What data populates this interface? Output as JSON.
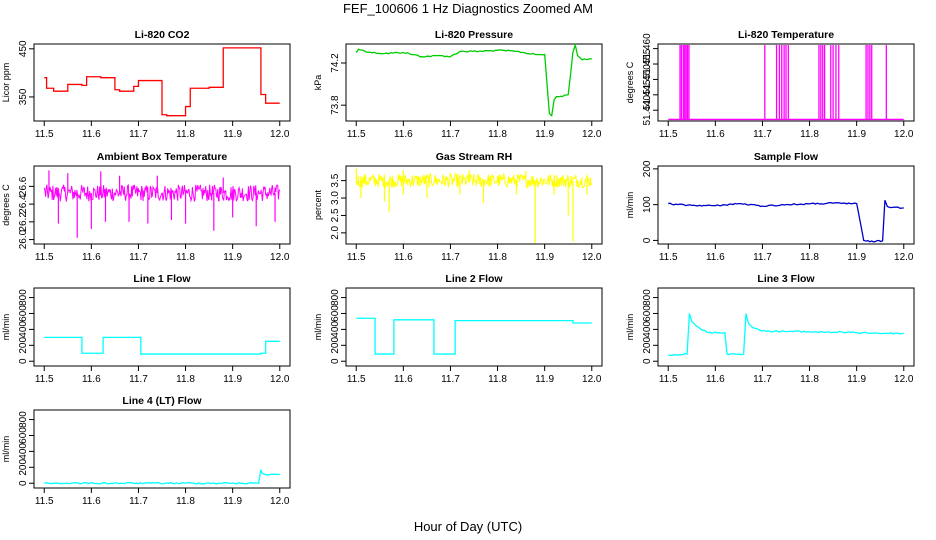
{
  "figure": {
    "title": "FEF_100606  1 Hz Diagnostics Zoomed AM",
    "xlabel": "Hour of Day (UTC)"
  },
  "chart_data": [
    {
      "type": "line",
      "title": "Li-820 CO2",
      "ylabel": "Licor ppm",
      "color": "#ff0000",
      "xlim": [
        11.5,
        12.0
      ],
      "ylim": [
        300,
        460
      ],
      "xticks": [
        11.5,
        11.6,
        11.7,
        11.8,
        11.9,
        12.0
      ],
      "yticks": [
        350,
        450
      ],
      "step": true,
      "x": [
        11.5,
        11.505,
        11.52,
        11.55,
        11.58,
        11.59,
        11.62,
        11.65,
        11.66,
        11.69,
        11.7,
        11.75,
        11.76,
        11.8,
        11.81,
        11.85,
        11.88,
        11.95,
        11.96,
        11.97,
        12.0
      ],
      "y": [
        390,
        368,
        362,
        376,
        374,
        392,
        390,
        365,
        362,
        372,
        384,
        313,
        311,
        330,
        368,
        370,
        452,
        452,
        355,
        337,
        337
      ]
    },
    {
      "type": "line",
      "title": "Li-820 Pressure",
      "ylabel": "kPa",
      "color": "#00cc00",
      "xlim": [
        11.5,
        12.0
      ],
      "ylim": [
        73.65,
        74.38
      ],
      "xticks": [
        11.5,
        11.6,
        11.7,
        11.8,
        11.9,
        12.0
      ],
      "yticks": [
        73.8,
        74.2
      ],
      "ytick_labels": [
        "73.8",
        "74.2"
      ],
      "step": false,
      "x": [
        11.5,
        11.505,
        11.53,
        11.56,
        11.6,
        11.64,
        11.68,
        11.7,
        11.72,
        11.76,
        11.8,
        11.84,
        11.88,
        11.9,
        11.91,
        11.915,
        11.92,
        11.925,
        11.93,
        11.95,
        11.96,
        11.965,
        11.97,
        11.98,
        12.0
      ],
      "y": [
        74.3,
        74.33,
        74.3,
        74.29,
        74.3,
        74.26,
        74.27,
        74.26,
        74.31,
        74.31,
        74.32,
        74.31,
        74.28,
        74.28,
        73.72,
        73.7,
        73.85,
        73.88,
        73.88,
        73.9,
        74.3,
        74.37,
        74.27,
        74.23,
        74.24
      ]
    },
    {
      "type": "line",
      "title": "Li-820 Temperature",
      "ylabel": "degrees C",
      "color": "#ff00ff",
      "xlim": [
        11.5,
        12.0
      ],
      "ylim": [
        51.4365,
        51.4615
      ],
      "xticks": [
        11.5,
        11.6,
        11.7,
        11.8,
        11.9,
        12.0
      ],
      "yticks": [
        51.44,
        51.445,
        51.45,
        51.455,
        51.46
      ],
      "ytick_labels": [
        "51.440",
        "51.445",
        "51.450",
        "51.455",
        "51.460"
      ],
      "baseline": 51.437,
      "spike_top": 51.4615,
      "spikes": [
        11.525,
        11.528,
        11.532,
        11.535,
        11.538,
        11.541,
        11.544,
        11.705,
        11.73,
        11.736,
        11.741,
        11.746,
        11.75,
        11.755,
        11.82,
        11.824,
        11.828,
        11.832,
        11.845,
        11.85,
        11.856,
        11.862,
        11.92,
        11.924,
        11.928,
        11.932,
        11.963
      ]
    },
    {
      "type": "line",
      "title": "Ambient Box Temperature",
      "ylabel": "degrees C",
      "color": "#ff00ff",
      "xlim": [
        11.5,
        12.0
      ],
      "ylim": [
        25.95,
        26.83
      ],
      "xticks": [
        11.5,
        11.6,
        11.7,
        11.8,
        11.9,
        12.0
      ],
      "yticks": [
        26.0,
        26.2,
        26.4,
        26.6
      ],
      "ytick_labels": [
        "26.0",
        "26.2",
        "26.4",
        "26.6"
      ],
      "band": {
        "low": 26.43,
        "high": 26.62
      },
      "dips": [
        [
          11.53,
          26.18
        ],
        [
          11.57,
          26.02
        ],
        [
          11.6,
          26.12
        ],
        [
          11.63,
          26.2
        ],
        [
          11.68,
          26.2
        ],
        [
          11.72,
          26.18
        ],
        [
          11.77,
          26.22
        ],
        [
          11.8,
          26.18
        ],
        [
          11.86,
          26.1
        ],
        [
          11.9,
          26.25
        ],
        [
          11.95,
          26.15
        ],
        [
          11.99,
          26.2
        ]
      ],
      "peaks": [
        [
          11.51,
          26.78
        ],
        [
          11.55,
          26.75
        ],
        [
          11.62,
          26.77
        ],
        [
          11.66,
          26.72
        ],
        [
          11.74,
          26.72
        ],
        [
          11.88,
          26.7
        ]
      ]
    },
    {
      "type": "line",
      "title": "Gas Stream RH",
      "ylabel": "percent",
      "color": "#ffff00",
      "xlim": [
        11.5,
        12.0
      ],
      "ylim": [
        1.68,
        3.92
      ],
      "xticks": [
        11.5,
        11.6,
        11.7,
        11.8,
        11.9,
        12.0
      ],
      "yticks": [
        2.0,
        2.5,
        3.0,
        3.5
      ],
      "ytick_labels": [
        "2.0",
        "2.5",
        "3.0",
        "3.5"
      ],
      "band": {
        "low": 3.3,
        "high": 3.7
      },
      "dips": [
        [
          11.51,
          3.0
        ],
        [
          11.56,
          2.9
        ],
        [
          11.57,
          2.6
        ],
        [
          11.6,
          3.1
        ],
        [
          11.65,
          3.0
        ],
        [
          11.72,
          3.1
        ],
        [
          11.77,
          2.85
        ],
        [
          11.84,
          3.1
        ],
        [
          11.88,
          1.7
        ],
        [
          11.92,
          3.1
        ],
        [
          11.95,
          2.5
        ],
        [
          11.96,
          1.75
        ],
        [
          11.99,
          3.1
        ]
      ],
      "peaks": [
        [
          11.5,
          3.85
        ],
        [
          11.6,
          3.8
        ],
        [
          11.74,
          3.8
        ],
        [
          11.86,
          3.78
        ]
      ]
    },
    {
      "type": "line",
      "title": "Sample Flow",
      "ylabel": "ml/min",
      "color": "#0000cc",
      "xlim": [
        11.5,
        12.0
      ],
      "ylim": [
        -10,
        208
      ],
      "xticks": [
        11.5,
        11.6,
        11.7,
        11.8,
        11.9,
        12.0
      ],
      "yticks": [
        0,
        100,
        200
      ],
      "step": false,
      "x": [
        11.5,
        11.52,
        11.55,
        11.6,
        11.65,
        11.7,
        11.75,
        11.8,
        11.85,
        11.9,
        11.915,
        11.92,
        11.94,
        11.955,
        11.96,
        11.965,
        11.97,
        11.98,
        12.0
      ],
      "y": [
        103,
        100,
        98,
        97,
        103,
        96,
        100,
        102,
        104,
        103,
        0,
        -2,
        -3,
        -1,
        112,
        95,
        92,
        93,
        91
      ]
    },
    {
      "type": "line",
      "title": "Line 1 Flow",
      "ylabel": "ml/min",
      "color": "#00ffff",
      "xlim": [
        11.5,
        12.0
      ],
      "ylim": [
        -60,
        920
      ],
      "xticks": [
        11.5,
        11.6,
        11.7,
        11.8,
        11.9,
        12.0
      ],
      "yticks": [
        0,
        200,
        400,
        600,
        800
      ],
      "step": true,
      "x": [
        11.5,
        11.58,
        11.625,
        11.705,
        11.96,
        11.97,
        12.0
      ],
      "y": [
        300,
        100,
        300,
        90,
        100,
        250,
        250
      ]
    },
    {
      "type": "line",
      "title": "Line 2 Flow",
      "ylabel": "ml/min",
      "color": "#00ffff",
      "xlim": [
        11.5,
        12.0
      ],
      "ylim": [
        -60,
        920
      ],
      "xticks": [
        11.5,
        11.6,
        11.7,
        11.8,
        11.9,
        12.0
      ],
      "yticks": [
        0,
        200,
        400,
        600,
        800
      ],
      "step": true,
      "x": [
        11.5,
        11.54,
        11.58,
        11.665,
        11.71,
        11.96,
        12.0
      ],
      "y": [
        540,
        90,
        520,
        90,
        510,
        480,
        480
      ]
    },
    {
      "type": "line",
      "title": "Line 3 Flow",
      "ylabel": "ml/min",
      "color": "#00ffff",
      "xlim": [
        11.5,
        12.0
      ],
      "ylim": [
        -60,
        920
      ],
      "xticks": [
        11.5,
        11.6,
        11.7,
        11.8,
        11.9,
        12.0
      ],
      "yticks": [
        0,
        200,
        400,
        600,
        800
      ],
      "step": false,
      "x": [
        11.5,
        11.54,
        11.545,
        11.55,
        11.56,
        11.57,
        11.585,
        11.62,
        11.625,
        11.66,
        11.665,
        11.67,
        11.68,
        11.7,
        11.8,
        11.9,
        11.96,
        12.0
      ],
      "y": [
        80,
        90,
        600,
        500,
        440,
        400,
        360,
        360,
        90,
        90,
        600,
        480,
        420,
        380,
        370,
        360,
        350,
        350
      ]
    },
    {
      "type": "line",
      "title": "Line 4 (LT) Flow",
      "ylabel": "ml/min",
      "color": "#00ffff",
      "xlim": [
        11.5,
        12.0
      ],
      "ylim": [
        -60,
        920
      ],
      "xticks": [
        11.5,
        11.6,
        11.7,
        11.8,
        11.9,
        12.0
      ],
      "yticks": [
        0,
        200,
        400,
        600,
        800
      ],
      "step": false,
      "x": [
        11.5,
        11.955,
        11.96,
        11.962,
        11.97,
        12.0
      ],
      "y": [
        0,
        0,
        170,
        130,
        110,
        110
      ]
    }
  ]
}
